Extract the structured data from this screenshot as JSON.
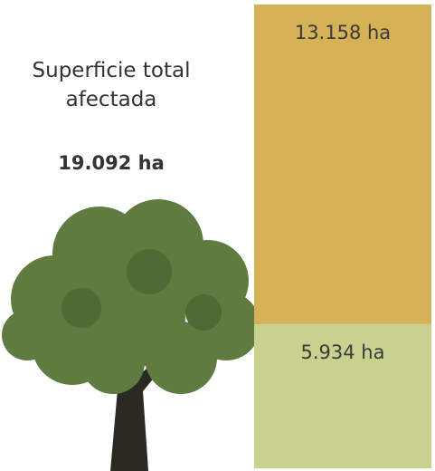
{
  "chart_data": {
    "type": "stacked-bar",
    "title": "Superficie total afectada",
    "total": {
      "value": 19092,
      "label": "19.092 ha"
    },
    "series": [
      {
        "color": "#c9d18f",
        "values": [
          5934
        ],
        "value_labels": [
          "5.934 ha"
        ]
      },
      {
        "color": "#d5b258",
        "values": [
          13158
        ],
        "value_labels": [
          "13.158 ha"
        ]
      }
    ]
  }
}
